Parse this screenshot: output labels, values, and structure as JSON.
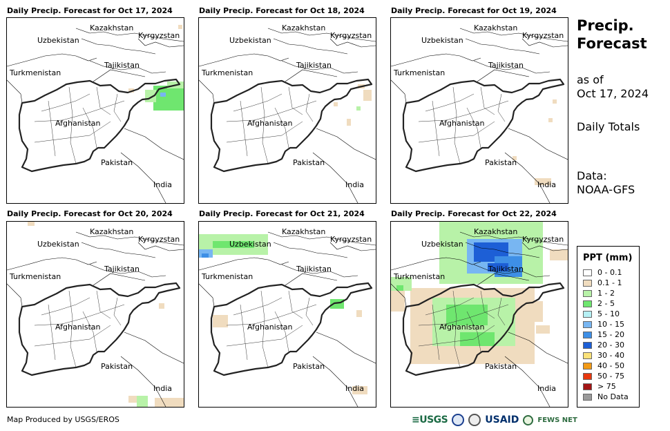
{
  "panels": [
    {
      "title": "Daily Precip. Forecast for Oct 17, 2024"
    },
    {
      "title": "Daily Precip. Forecast for Oct 18, 2024"
    },
    {
      "title": "Daily Precip. Forecast for Oct 19, 2024"
    },
    {
      "title": "Daily Precip. Forecast for Oct 20, 2024"
    },
    {
      "title": "Daily Precip. Forecast for Oct 21, 2024"
    },
    {
      "title": "Daily Precip. Forecast for Oct 22, 2024"
    }
  ],
  "map_labels": {
    "kazakhstan": "Kazakhstan",
    "uzbekistan": "Uzbekistan",
    "kyrgyzstan": "Kyrgyzstan",
    "turkmenistan": "Turkmenistan",
    "tajikistan": "Tajikistan",
    "afghanistan": "Afghanistan",
    "pakistan": "Pakistan",
    "india": "India"
  },
  "side": {
    "title_line1": "Precip.",
    "title_line2": "Forecast",
    "asof_line1": "as of",
    "asof_line2": "Oct 17, 2024",
    "totals": "Daily Totals",
    "data_line1": "Data:",
    "data_line2": "NOAA-GFS"
  },
  "legend": {
    "title": "PPT (mm)",
    "items": [
      {
        "label": "0 - 0.1",
        "color": "#ffffff"
      },
      {
        "label": "0.1 - 1",
        "color": "#f0dcbf"
      },
      {
        "label": "1 - 2",
        "color": "#b8f2a8"
      },
      {
        "label": "2 - 5",
        "color": "#6fe66f"
      },
      {
        "label": "5 - 10",
        "color": "#b6f0f4"
      },
      {
        "label": "10 - 15",
        "color": "#78b6f2"
      },
      {
        "label": "15 - 20",
        "color": "#3e8fe6"
      },
      {
        "label": "20 - 30",
        "color": "#1d5fd6"
      },
      {
        "label": "30 - 40",
        "color": "#fbe27a"
      },
      {
        "label": "40 - 50",
        "color": "#f29a16"
      },
      {
        "label": "50 - 75",
        "color": "#e8380e"
      },
      {
        "label": "> 75",
        "color": "#a31515"
      },
      {
        "label": "No Data",
        "color": "#9a9a9a"
      }
    ]
  },
  "footer": "Map Produced by USGS/EROS",
  "logos": {
    "usgs": "USGS",
    "usaid": "USAID",
    "fews": "FEWS NET"
  }
}
